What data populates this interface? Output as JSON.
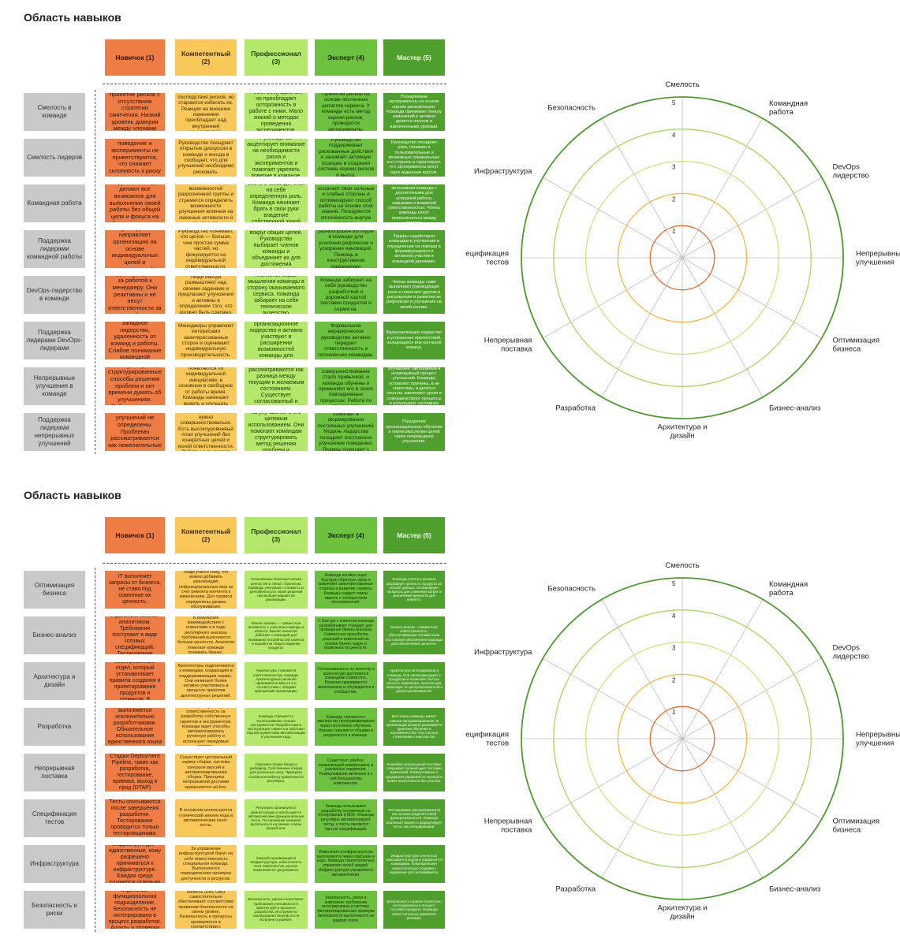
{
  "colors": {
    "novice": "#ed7d45",
    "competent": "#f9c85a",
    "professional": "#b4e86a",
    "expert": "#6cc23f",
    "master": "#4f9f2c",
    "ring1": "#e36b2c",
    "ring2": "#f2b63e",
    "ring3": "#c8e67a",
    "ring4": "#a6d85a",
    "ring5": "#4c9b2a"
  },
  "levels": [
    "Новичок (1)",
    "Компетентный (2)",
    "Профессионал (3)",
    "Эксперт (4)",
    "Мастер (5)"
  ],
  "sections": [
    {
      "title": "Область навыков",
      "rows": [
        {
          "label": "Смелость в команде",
          "cells": [
            "Бессознательное принятие рисков с отсутствием стратегии смягчения. Низкий уровень доверия между членами команды.",
            "Люди понимают последствия рисков, но стараются избегать их. Реакция на внешние изменения преобладает над внутренней инициативой.",
            "Риски обсуждаются, но преобладает осторожность в работе с ними. Мало знаний о методах проведения экспериментов.",
            "Принятие рисков на основе численных аспектов сервиса. У команды есть метод оценки рисков, проводятся эксперименты.",
            "Поощряемые эксперименты на основе оценки рисков/затрат. Команда принимает пользу изменений и активно делится опытом и извлеченными уроками."
          ]
        },
        {
          "label": "Смелость лидеров",
          "cells": [
            "Рискованное поведение и эксперименты не приветствуются, что снижает склонность к риску членов команд.",
            "Руководство поощряет открытые дискуссии в команде и иногда в сообщает, что для улучшений необходимо рисковать.",
            "Руководство акцентирует внимание на необходимости риска и экспериментов и помогает укрепить доверие в команде.",
            "Руководство поддерживает рискованные действия и занимает активную позицию в создании системы оценки рисков и выгод.",
            "Руководство поощряет риск, понимая и пользовательные и возможные специальные его стороны и гарантирует, что эксперименты могут идти заданным курсом."
          ]
        },
        {
          "label": "Командная работа",
          "cells": [
            "Отдельные люди делают все возможное для выполнения своей работы без общей цели и фокуса на общем результате.",
            "Люди осознают предел возможностей разрозненной группы и стремятся определить возможности улучшения влияния на смежные активности и на клиента.",
            "Люди находят свое место в команде, зная на себе определенную роль. Команда начинает брать в свои руки владение собственной зоной ответственности.",
            "Члены команды осознают свои сильные и слабые стороны и оптимизируют способ работы на основе этих знаний. Поощряется сплочённость внутри команды.",
            "Кросс-функциональная, автономная команда с достаточными для успешной работы навыками и взаимной ответственностью. Члены команды могут переключаться между ролями."
          ]
        },
        {
          "label": "Поддержка лидерами командной работы",
          "cells": [
            "Руководство направляет организацию на основе индивидуальных целей и возможностей.",
            "Руководство понимает, что целое — больше, чем простая сумма частей, но фокусируется на индивидуальной ответственности.",
            "Команды создаются вокруг общих целей. Руководство выбирает членов команды и объединяет их для достижения командной цели.",
            "Поощрение разнообразия взглядов в команде для усиления рефлексии и ускорения инноваций. Помощь в конструктивном разрешении конфликтов.",
            "Лидеры содействуют командам в улучшении и определении на помощи в формирующемся и активном участии в командной динамике."
          ]
        },
        {
          "label": "DevOps-лидерство в команде",
          "cells": [
            "Люди обращаются за работой к менеджеру. Они реактивны и не несут ответственности за свои действия.",
            "Люди иногда размышляют над своими задачами и предлагают улучшения и активны в определении того, что должно быть сделано.",
            "Меняется образ мышления команды в сторону оказываемого сервиса. Команда забирает на себя техническое лидерство.",
            "Команда забирает на себя руководство разработкой и дорожной картой поставки продуктов и сервисов.",
            "Члены команды сами выполняют руководящие роли и помогают другим в расширении и развитии их рефлексии и улучшения на своей основе."
          ]
        },
        {
          "label": "Поддержка лидерами DevOps-лидерами",
          "cells": [
            "Традиционное западное лидерство, удаленность от команд и работы. Слабое понимание командной динамики.",
            "Менеджеры управляют интересами заинтересованных сторон и оценивают индивидуальную производительность.",
            "Менеджеры сохраняют формальное организационное лидерство и активно участвуют в расширении возможностей команды для рефлексии и улучшений на её основе.",
            "Формальное иерархическое руководство активно передает ответственность и полномочия командам.",
            "Вдохновляющее лидерство и устранение препятствий, находящихся вне контроля команд."
          ]
        },
        {
          "label": "Непрерывные улучшения в команде",
          "cells": [
            "Практически отсутствуют структурированные способы решения проблем и нет времени думать об улучшениях. Работа в режиме «пожаротушения».",
            "Улучшения все чаще появляются по индивидуальной инициативе, в основном в свободное от работы время. Команды начинают видеть и улучшать ценность.",
            "Выделено время на улучшения, а проблемы рассматриваются как разница между текущим и желаемым состоянием. Существует согласованный и структурированный метод решения проблем.",
            "Команда ищет проблемы для решения. Постоянное совершенствование стало привычкой, и команды обучены и применяют его в своих повседневных процессах. Работа по улучшениям интегрирована в плановые процессы.",
            "Самообучающиеся улучшения: автономный и непрерывный процесс улучшений. Команды устраняют причины, а не симптомы, и делятся опытом, извлекают уроки и совершенствуют процессы и используют системное мышление."
          ]
        },
        {
          "label": "Поддержка лидерами непрерывных улучшений",
          "cells": [
            "Менеджеры дают ответы. Цели улучшений не определены. Проблемы рассматриваются как нежелательные и часто игнорируются.",
            "Менеджеры говорят командам, что им нужно совершенствоваться. Есть высокоуровневый план улучшений без конкретных целей и ясной ответственности. Работа не выделяет время на улучшения.",
            "Менеджеры следят за выделением времени на улучшения и его целевым использованием. Они помогают командам структурировать метод решения проблем и гарантируют, что у них есть понятные цели.",
            "Руководство активно помогает в формировании постоянных улучшений. Модель лидерства поощряет постоянное улучшение поведения. Лидеры помогают с целеполаганием.",
            "Поощрение организационного обучения и переосмысления целей через непрерывное улучшение."
          ]
        }
      ],
      "radar": {
        "axes": [
          "Смелость",
          "Командная работа",
          "DevOps лидерство",
          "Непрерывные улучшения",
          "Оптимизация бизнеса",
          "Бизнес-анализ",
          "Архитектура и дизайн",
          "Разработка",
          "Непрерывная поставка",
          "Спецификация тестов",
          "Инфраструктура",
          "Безопасность"
        ],
        "ticks": [
          "1",
          "2",
          "3",
          "4",
          "5"
        ]
      }
    },
    {
      "title": "Область навыков",
      "rows": [
        {
          "label": "Оптимизация бизнеса",
          "cells": [
            "IT выполняет запросы от бизнеса, не ставя под сомнение их ценность.",
            "Люди учатся тому, что можно добавить реализацию нефункциональных мер за счет ремонта контента к изменениям. Для сервиса определены уровни обслуживания.",
            "Установлены понятные потоки ценностей и связи с бизнесом. Команды учитывают стоимость и рентабельность своих решений при выборе вариантов реализации.",
            "Команда активно ищет быструю обратную связь и вовлекает заинтересованные стороны в развитие сервиса. Команда создает темпы вместе с сообществом пользователей.",
            "Команда учится и активно формирует ценность продукта на основе данных, оптимизирует процессы для снижения затрат и увеличения ценности для клиента."
          ]
        },
        {
          "label": "Бизнес-анализ",
          "cells": [
            "Бизнес-анализ проводится исключительно отдельным бизнес-аналитиком. Требования поступают в виде готовых спецификаций. Тестирование функциональности не связано с анализом.",
            "В результате взаимодействия с клиентами и в ходе регулярного анализа требований выясняются больше ценности. Аналитик помогает команде понимать бизнес.",
            "Бизнес-анализ — совместная активность с участием команды и клиента. Бизнес-аналитик работает с командой для понимания потребностей клиента и выработки общего видения продукта.",
            "С Быстро с клиентом команда разрабатывает стандарт для проведения бизнес-анализа. Совместная проработка решений и изменений на основе бизнес-задач и возможности ценности.",
            "Бизнес-анализ - совместная ответственность, обеспечивающая оптимальное постоянное обеспечение команды для обеспечения ценности."
          ]
        },
        {
          "label": "Архитектура и дизайн",
          "cells": [
            "Архитектура - это в значительной степени изолированный отдел, который устанавливает правила создания и проектирования продуктов и сервисов. В основном это правила не соблюдаются.",
            "Архитекторы подключаются к командам, создающим и поддерживающим сервис. Они начинают более активно участвовать в процессе принятия архитектурных решений.",
            "Архитектура становится ответственностью команды. Архитектурные решения принимаются вместе и в соответствии с общими принципами организации.",
            "Согласованность по качеству и архитектуре достигается командами совместно. Решения принимаются эволюционно и обсуждаются в сообществе.",
            "Архитектура интегрирована в команду. Она эволюционирует с продуктом и позволяет быстро вносить изменения. Архитектура переходит от централизованной к децентрализованной."
          ]
        },
        {
          "label": "Разработка",
          "cells": [
            "Вся программирование выполняется исключительно разработчиками. Обязательное использование единственного языка программирования или платформы.",
            "Эксплуатация берет ответственность за разработку собственных скриптов и инструментов. Команда ищет способы автоматизировать рутинную работу и использует передовые методы.",
            "Команда стремится к использованию лучших инструментов. Разработчики и эксплуатация совместно работают над инструментами автоматизации и улучшения кода.",
            "Команда стремится к мастерству программирования через постоянное обучение. Навыки становятся общими и разделяются в команде.",
            "Все члены команды имеют навыки программирования. В организации активно развивается практика обучения и наставничества. Постоянное стремление к мастерству."
          ]
        },
        {
          "label": "Непрерывная поставка",
          "cells": [
            "Нет знаний о Continuous Delivery. Стадии Deployment Pipeline, такие как разработка, тестирование, приемка, выход в прод (DTAP) разделены, их границы реальны.",
            "Существует центральный сервер сборки, система контроля версий и автоматизированная сборка. Принципы непрерывной доставки применяются ad-hoc.",
            "Сквозная сборка билда и packaging. Собственные сборки для различных сред. Принципы Continuous Delivery применяются регулярно.",
            "Существует pipeline, позволяющий развёртывать в различные окружения. Развертывание включено в с ней большинства компонентов.",
            "Конвейер непрерывной поставки покрывает полный цикл поставки изменений. Развертывание в продакшен управляется кнопкой и может выполняться без участия."
          ]
        },
        {
          "label": "Спецификация тестов",
          "cells": [
            "Тесты описываются после завершения разработки. Тестирование проводится только тестировщиками.",
            "В основном используются статический анализ кода и автоматические юнит-тесты.",
            "Регулярно организуются демонстрации и используются автоматические функциональные тесты. Тестирование начинает выполняться на ранних этапах разработки.",
            "Команды испытывают разработку основанную на тестировании и BDD. Команды регулярно автоматизируют тесты, и тесты являются частью спецификаций.",
            "Тестирование рассматривается как основа создания новой функциональности. Команда вовлекает бизнес и формулирует тесты как спецификации."
          ]
        },
        {
          "label": "Инфраструктура",
          "cells": [
            "Специалисты по инфраструктуре - единственные, кому разрешено приниматься к инфраструктуре. Каждая среда создается отдельно по запросу.",
            "За управление инфраструктурой берет на себя ответственность специальная команда. Выполняются периодические проверки доступности и ресурсов.",
            "Самообслуживающиеся инфраструктура, избыточность всех компонентов, ручные изменения не допускаются.",
            "Изменения в инфраструктуре выполняются через описание в коде. Команда самостоятельно управляет своей средой. Инфраструктура управляется автоматически.",
            "Инфраструктура полностью описывается кодом и управляется командами. Команда может самостоятельно создавать окружение для эксперимента."
          ]
        },
        {
          "label": "Безопасность и риски",
          "cells": [
            "Безопасность - отдельная функциональная подразделение, Безопасность не интегрирована в процесс разработки. Аудиты и проверки проводятся поздно.",
            "Каждая техническая область (Dev, Ops) самостоятельно обеспечивает соответствие правилам безопасности на своем уровне, Безопасность и процессы проверяются в соответствии с требованиями.",
            "Безопасность, риски и комплаенс-требования учитываются в архитектуре и процессе разработки. Инструменты сканирования безопасности встроены в pipeline.",
            "Безопасность, риски и комплаенс требования интегрированы в систему. Автоматизированные проверки безопасности выполняются на каждом этапе.",
            "Безопасность и риски полностью интегрированы в процесс поставки продукта. Команда самостоятельно управляет рисками."
          ]
        }
      ],
      "radar": {
        "axes": [
          "Смелость",
          "Командная работа",
          "DevOps лидерство",
          "Непрерывные улучшения",
          "Оптимизация бизнеса",
          "Бизнес-анализ",
          "Архитектура и дизайн",
          "Разработка",
          "Непрерывная поставка",
          "Спецификация тестов",
          "Инфраструктура",
          "Безопасность"
        ],
        "ticks": [
          "1",
          "2",
          "3",
          "4",
          "5"
        ]
      }
    }
  ]
}
